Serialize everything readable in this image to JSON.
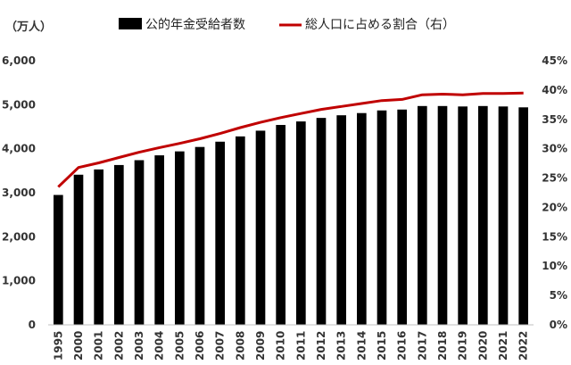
{
  "chart_data": {
    "type": "bar",
    "title": "",
    "y_unit_label": "（万人）",
    "xlabel": "",
    "ylabel": "",
    "categories": [
      "1995",
      "2000",
      "2001",
      "2002",
      "2003",
      "2004",
      "2005",
      "2006",
      "2007",
      "2008",
      "2009",
      "2010",
      "2011",
      "2012",
      "2013",
      "2014",
      "2015",
      "2016",
      "2017",
      "2018",
      "2019",
      "2020",
      "2021",
      "2022"
    ],
    "series": [
      {
        "name": "公的年金受給者数",
        "type": "bar",
        "axis": "left",
        "color": "#000000",
        "values": [
          2950,
          3410,
          3530,
          3630,
          3740,
          3850,
          3940,
          4040,
          4160,
          4280,
          4410,
          4540,
          4620,
          4700,
          4760,
          4810,
          4870,
          4890,
          4970,
          4970,
          4960,
          4970,
          4960,
          4940
        ]
      },
      {
        "name": "総人口に占める割合（右）",
        "type": "line",
        "axis": "right",
        "color": "#c00000",
        "values": [
          23.5,
          26.8,
          27.6,
          28.5,
          29.4,
          30.2,
          30.9,
          31.7,
          32.6,
          33.6,
          34.5,
          35.3,
          36.0,
          36.7,
          37.2,
          37.7,
          38.2,
          38.4,
          39.2,
          39.3,
          39.2,
          39.4,
          39.4,
          39.5
        ]
      }
    ],
    "ylim_left": [
      0,
      6000
    ],
    "yticks_left": [
      "0",
      "1,000",
      "2,000",
      "3,000",
      "4,000",
      "5,000",
      "6,000"
    ],
    "ylim_right": [
      0,
      45
    ],
    "yticks_right": [
      "0%",
      "5%",
      "10%",
      "15%",
      "20%",
      "25%",
      "30%",
      "35%",
      "40%",
      "45%"
    ],
    "grid": false,
    "legend": "top"
  }
}
